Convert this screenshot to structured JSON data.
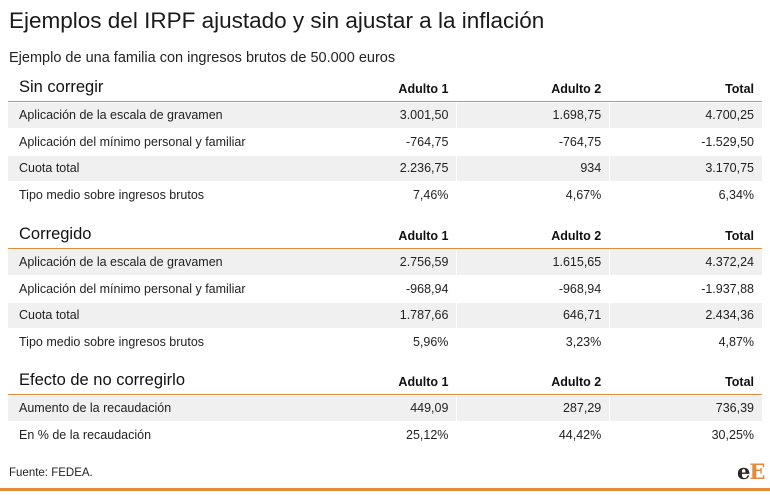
{
  "title": "Ejemplos del IRPF ajustado y sin ajustar a la inflación",
  "subtitle": "Ejemplo de una familia con ingresos brutos de 50.000 euros",
  "sections": [
    {
      "heading": "Sin corregir",
      "columns": [
        "Adulto 1",
        "Adulto 2",
        "Total"
      ],
      "rows": [
        {
          "label": "Aplicación de la escala de gravamen",
          "a1": "3.001,50",
          "a2": "1.698,75",
          "total": "4.700,25"
        },
        {
          "label": "Aplicación del mínimo personal y familiar",
          "a1": "-764,75",
          "a2": "-764,75",
          "total": "-1.529,50"
        },
        {
          "label": "Cuota total",
          "a1": "2.236,75",
          "a2": "934",
          "total": "3.170,75"
        },
        {
          "label": "Tipo medio sobre ingresos brutos",
          "a1": "7,46%",
          "a2": "4,67%",
          "total": "6,34%"
        }
      ]
    },
    {
      "heading": "Corregido",
      "columns": [
        "Adulto 1",
        "Adulto 2",
        "Total"
      ],
      "rows": [
        {
          "label": "Aplicación de la escala de gravamen",
          "a1": "2.756,59",
          "a2": "1.615,65",
          "total": "4.372,24"
        },
        {
          "label": "Aplicación del mínimo personal y familiar",
          "a1": "-968,94",
          "a2": "-968,94",
          "total": "-1.937,88"
        },
        {
          "label": "Cuota total",
          "a1": "1.787,66",
          "a2": "646,71",
          "total": "2.434,36"
        },
        {
          "label": "Tipo medio sobre ingresos brutos",
          "a1": "5,96%",
          "a2": "3,23%",
          "total": "4,87%"
        }
      ]
    },
    {
      "heading": "Efecto de no corregirlo",
      "columns": [
        "Adulto 1",
        "Adulto 2",
        "Total"
      ],
      "rows": [
        {
          "label": "Aumento de la recaudación",
          "a1": "449,09",
          "a2": "287,29",
          "total": "736,39"
        },
        {
          "label": "En % de la recaudación",
          "a1": "25,12%",
          "a2": "44,42%",
          "total": "30,25%"
        }
      ]
    }
  ],
  "source": "Fuente: FEDEA.",
  "logo": {
    "part1": "e",
    "part2": "E"
  },
  "colors": {
    "accent": "#e8893a",
    "row_shade": "#f0f0f0"
  }
}
